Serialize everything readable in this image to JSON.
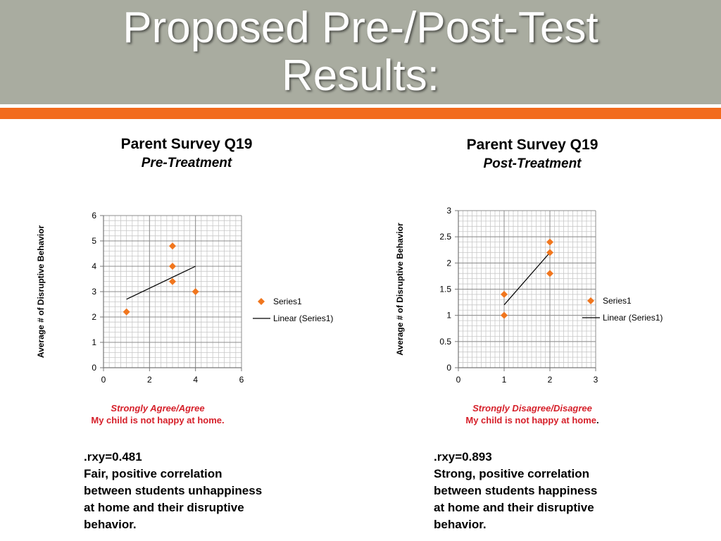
{
  "slide": {
    "title_line1": "Proposed Pre-/Post-Test",
    "title_line2": "Results:",
    "colors": {
      "band": "#a9aca0",
      "accent": "#f26b1d",
      "marker": "#f0761e",
      "caption": "#d6202a"
    }
  },
  "charts": [
    {
      "title": "Parent Survey Q19",
      "subtitle": "Pre-Treatment",
      "caption_italic": "Strongly Agree/Agree",
      "caption_main": "My child is not happy at home.",
      "caption_suffix": "",
      "stats": [
        ".rxy=0.481",
        "Fair, positive correlation",
        "between students unhappiness",
        "at home and their disruptive",
        "behavior."
      ]
    },
    {
      "title": "Parent Survey Q19",
      "subtitle": "Post-Treatment",
      "caption_italic": "Strongly Disagree/Disagree",
      "caption_main": "My child is not happy at home",
      "caption_suffix": ".",
      "stats": [
        ".rxy=0.893",
        "Strong, positive correlation",
        "between students happiness",
        "at home and their disruptive",
        "behavior."
      ]
    }
  ],
  "chart_data": [
    {
      "type": "scatter",
      "title": "Parent Survey Q19",
      "subtitle": "Pre-Treatment",
      "xlabel": "",
      "ylabel": "Average # of Disruptive Behavior",
      "xlim": [
        0,
        6
      ],
      "ylim": [
        0,
        6
      ],
      "xticks": [
        "0",
        "2",
        "4",
        "6"
      ],
      "yticks": [
        "0",
        "1",
        "2",
        "3",
        "4",
        "5",
        "6"
      ],
      "xtick_values": [
        0,
        2,
        4,
        6
      ],
      "ytick_values": [
        0,
        1,
        2,
        3,
        4,
        5,
        6
      ],
      "minor_x_step": 0.25,
      "minor_y_step": 0.2,
      "grid": true,
      "legend_position": "right",
      "series": [
        {
          "name": "Series1",
          "x": [
            1,
            3,
            3,
            3,
            4
          ],
          "y": [
            2.2,
            4.8,
            4,
            3.4,
            3
          ],
          "marker": "diamond",
          "color": "#f0761e"
        }
      ],
      "trendline": {
        "name": "Linear (Series1)",
        "x": [
          1,
          4
        ],
        "y": [
          2.7,
          4
        ],
        "color": "#000000"
      }
    },
    {
      "type": "scatter",
      "title": "Parent Survey Q19",
      "subtitle": "Post-Treatment",
      "xlabel": "",
      "ylabel": "Average # of Disruptive Behavior",
      "xlim": [
        0,
        3
      ],
      "ylim": [
        0,
        3
      ],
      "xticks": [
        "0",
        "1",
        "2",
        "3"
      ],
      "yticks": [
        "0",
        "0.5",
        "1",
        "1.5",
        "2",
        "2.5",
        "3"
      ],
      "xtick_values": [
        0,
        1,
        2,
        3
      ],
      "ytick_values": [
        0,
        0.5,
        1,
        1.5,
        2,
        2.5,
        3
      ],
      "minor_x_step": 0.1,
      "minor_y_step": 0.1,
      "grid": true,
      "legend_position": "right",
      "series": [
        {
          "name": "Series1",
          "x": [
            1,
            1,
            2,
            2,
            2
          ],
          "y": [
            1.4,
            1,
            2.4,
            2.2,
            1.8
          ],
          "marker": "diamond",
          "color": "#f0761e"
        }
      ],
      "trendline": {
        "name": "Linear (Series1)",
        "x": [
          1,
          2
        ],
        "y": [
          1.2,
          2.2
        ],
        "color": "#000000"
      }
    }
  ]
}
